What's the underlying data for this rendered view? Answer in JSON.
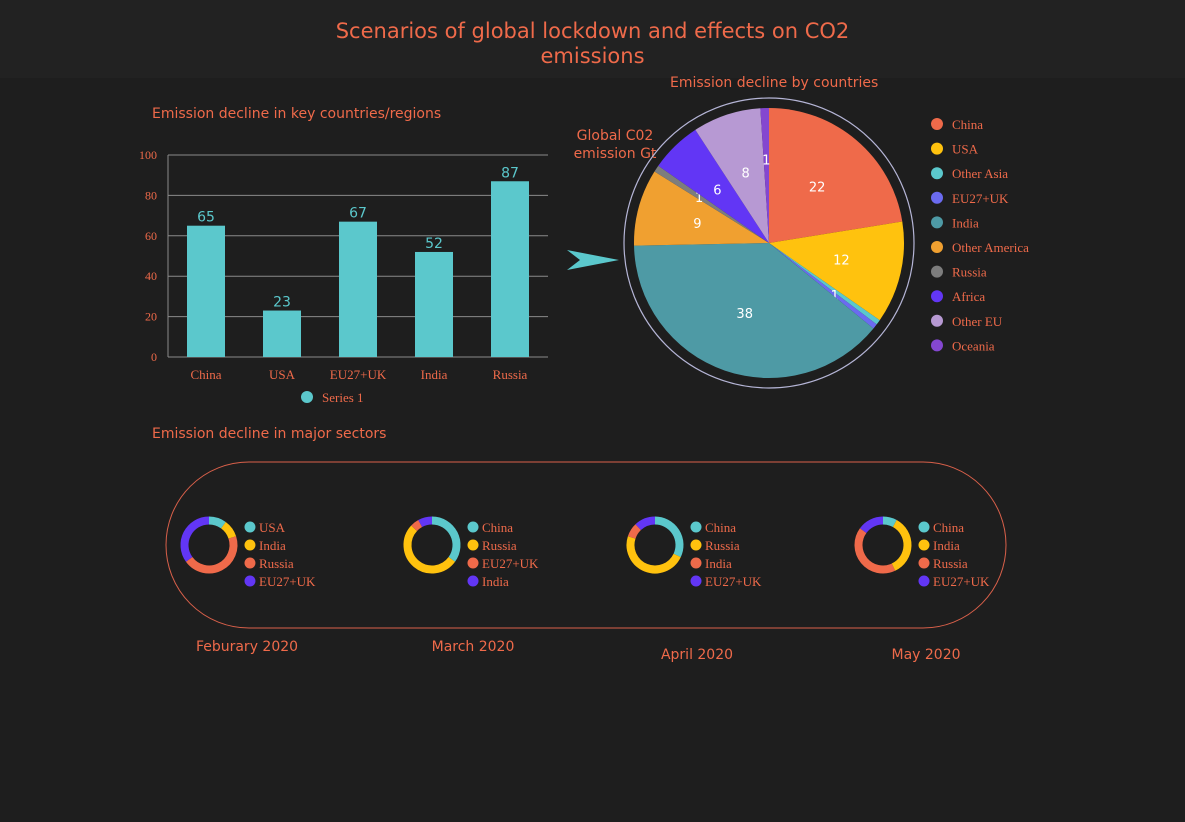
{
  "title": "Scenarios of global lockdown and effects on CO2 emissions",
  "sections": {
    "bar_title": "Emission decline in key countries/regions",
    "pie_title": "Emission decline by countries",
    "pie_side_label": "Global C02 emission Gt",
    "donut_title": "Emission decline in major sectors"
  },
  "colors": {
    "accent": "#ef6a4a",
    "bar": "#5bc8cc",
    "background": "#1e1e1e"
  },
  "chart_data": [
    {
      "type": "bar",
      "title": "Emission decline in key countries/regions",
      "categories": [
        "China",
        "USA",
        "EU27+UK",
        "India",
        "Russia"
      ],
      "series": [
        {
          "name": "Series 1",
          "values": [
            65,
            23,
            67,
            52,
            87
          ]
        }
      ],
      "yticks": [
        "0",
        "20",
        "40",
        "60",
        "80",
        "100"
      ],
      "ylim": [
        0,
        100
      ],
      "grid": true,
      "legend": "bottom"
    },
    {
      "type": "pie",
      "title": "Emission decline by countries",
      "slices": [
        {
          "label": "China",
          "value": 22,
          "color": "#ef6a4a",
          "text": "22"
        },
        {
          "label": "USA",
          "value": 12,
          "color": "#ffc20e",
          "text": "12"
        },
        {
          "label": "Other Asia",
          "value": 0.6,
          "color": "#5bc8cc",
          "text": ""
        },
        {
          "label": "EU27+UK",
          "value": 0.6,
          "color": "#6b6bf0",
          "text": "1"
        },
        {
          "label": "India",
          "value": 38,
          "color": "#4e9aa5",
          "text": "38"
        },
        {
          "label": "Other America",
          "value": 9,
          "color": "#f0a030",
          "text": "9"
        },
        {
          "label": "Russia",
          "value": 0.8,
          "color": "#7d7d7d",
          "text": "1"
        },
        {
          "label": "Africa",
          "value": 6,
          "color": "#6236f5",
          "text": "6"
        },
        {
          "label": "Other EU",
          "value": 8,
          "color": "#b799d3",
          "text": "8"
        },
        {
          "label": "Oceania",
          "value": 1,
          "color": "#8447d0",
          "text": "1"
        }
      ],
      "legend": "right"
    },
    {
      "type": "pie",
      "title": "Feburary 2020",
      "donut": true,
      "slices": [
        {
          "label": "USA",
          "value": 10,
          "color": "#5bc8cc"
        },
        {
          "label": "India",
          "value": 10,
          "color": "#ffc20e"
        },
        {
          "label": "Russia",
          "value": 45,
          "color": "#ef6a4a"
        },
        {
          "label": "EU27+UK",
          "value": 35,
          "color": "#6236f5"
        }
      ]
    },
    {
      "type": "pie",
      "title": "March 2020",
      "donut": true,
      "slices": [
        {
          "label": "China",
          "value": 35,
          "color": "#5bc8cc"
        },
        {
          "label": "Russia",
          "value": 52,
          "color": "#ffc20e"
        },
        {
          "label": "EU27+UK",
          "value": 5,
          "color": "#ef6a4a"
        },
        {
          "label": "India",
          "value": 8,
          "color": "#6236f5"
        }
      ]
    },
    {
      "type": "pie",
      "title": "April 2020",
      "donut": true,
      "slices": [
        {
          "label": "China",
          "value": 32,
          "color": "#5bc8cc"
        },
        {
          "label": "Russia",
          "value": 48,
          "color": "#ffc20e"
        },
        {
          "label": "India",
          "value": 8,
          "color": "#ef6a4a"
        },
        {
          "label": "EU27+UK",
          "value": 12,
          "color": "#6236f5"
        }
      ]
    },
    {
      "type": "pie",
      "title": "May 2020",
      "donut": true,
      "slices": [
        {
          "label": "China",
          "value": 8,
          "color": "#5bc8cc"
        },
        {
          "label": "India",
          "value": 35,
          "color": "#ffc20e"
        },
        {
          "label": "Russia",
          "value": 42,
          "color": "#ef6a4a"
        },
        {
          "label": "EU27+UK",
          "value": 15,
          "color": "#6236f5"
        }
      ]
    }
  ],
  "months": [
    "Feburary 2020",
    "March 2020",
    "April 2020",
    "May 2020"
  ]
}
